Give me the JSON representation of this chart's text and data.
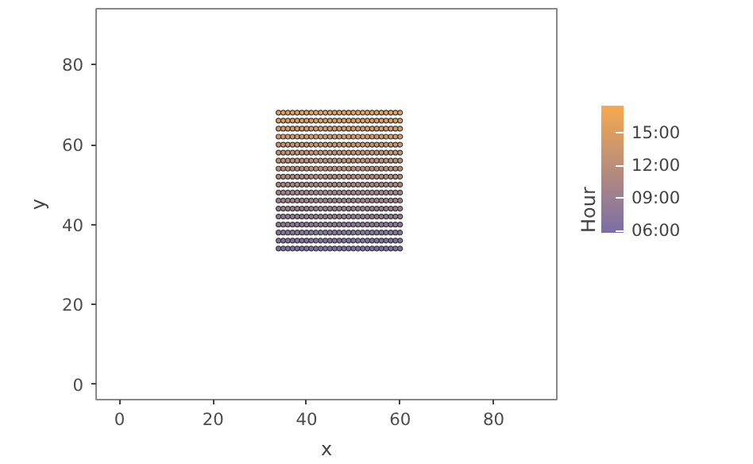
{
  "chart_data": {
    "type": "scatter",
    "xlabel": "x",
    "ylabel": "y",
    "clabel": "Hour",
    "xlim": [
      -5,
      93.5
    ],
    "ylim": [
      -3.8,
      94
    ],
    "xticks": [
      0,
      20,
      40,
      60,
      80
    ],
    "yticks": [
      0,
      20,
      40,
      60,
      80
    ],
    "grid": false,
    "marker": "circle",
    "clim": [
      5.8,
      17.5
    ],
    "cticks": [
      {
        "value": 6,
        "label": "06:00"
      },
      {
        "value": 9,
        "label": "09:00"
      },
      {
        "value": 12,
        "label": "12:00"
      },
      {
        "value": 15,
        "label": "15:00"
      }
    ],
    "x": [
      34,
      35,
      36,
      37,
      38,
      39,
      40,
      41,
      42,
      43,
      44,
      45,
      46,
      47,
      48,
      49,
      50,
      51,
      52,
      53,
      54,
      55,
      56,
      57,
      58,
      59,
      60
    ],
    "series": [
      {
        "values": [
          34,
          34,
          34,
          34,
          34,
          34,
          34,
          34,
          34,
          34,
          34,
          34,
          34,
          34,
          34,
          34,
          34,
          34,
          34,
          34,
          34,
          34,
          34,
          34,
          34,
          34,
          34
        ],
        "cvalues": [
          6,
          6,
          6,
          6,
          6,
          6,
          6,
          6,
          6,
          6,
          6,
          6,
          6,
          6,
          6,
          6,
          6,
          6,
          6,
          6,
          6,
          6,
          6,
          6,
          6,
          6,
          6
        ]
      },
      {
        "values": [
          36,
          36,
          36,
          36,
          36,
          36,
          36,
          36,
          36,
          36,
          36,
          36,
          36,
          36,
          36,
          36,
          36,
          36,
          36,
          36,
          36,
          36,
          36,
          36,
          36,
          36,
          36
        ],
        "cvalues": [
          6.6,
          6.6,
          6.6,
          6.6,
          6.6,
          6.6,
          6.6,
          6.6,
          6.6,
          6.6,
          6.6,
          6.6,
          6.6,
          6.6,
          6.6,
          6.6,
          6.6,
          6.6,
          6.6,
          6.6,
          6.6,
          6.6,
          6.6,
          6.6,
          6.6,
          6.6,
          6.6
        ]
      },
      {
        "values": [
          38,
          38,
          38,
          38,
          38,
          38,
          38,
          38,
          38,
          38,
          38,
          38,
          38,
          38,
          38,
          38,
          38,
          38,
          38,
          38,
          38,
          38,
          38,
          38,
          38,
          38,
          38
        ],
        "cvalues": [
          7.2,
          7.2,
          7.2,
          7.2,
          7.2,
          7.2,
          7.2,
          7.2,
          7.2,
          7.2,
          7.2,
          7.2,
          7.2,
          7.2,
          7.2,
          7.2,
          7.2,
          7.2,
          7.2,
          7.2,
          7.2,
          7.2,
          7.2,
          7.2,
          7.2,
          7.2,
          7.2
        ]
      },
      {
        "values": [
          40,
          40,
          40,
          40,
          40,
          40,
          40,
          40,
          40,
          40,
          40,
          40,
          40,
          40,
          40,
          40,
          40,
          40,
          40,
          40,
          40,
          40,
          40,
          40,
          40,
          40,
          40
        ],
        "cvalues": [
          7.8,
          7.8,
          7.8,
          7.8,
          7.8,
          7.8,
          7.8,
          7.8,
          7.8,
          7.8,
          7.8,
          7.8,
          7.8,
          7.8,
          7.8,
          7.8,
          7.8,
          7.8,
          7.8,
          7.8,
          7.8,
          7.8,
          7.8,
          7.8,
          7.8,
          7.8,
          7.8
        ]
      },
      {
        "values": [
          42,
          42,
          42,
          42,
          42,
          42,
          42,
          42,
          42,
          42,
          42,
          42,
          42,
          42,
          42,
          42,
          42,
          42,
          42,
          42,
          42,
          42,
          42,
          42,
          42,
          42,
          42
        ],
        "cvalues": [
          8.4,
          8.4,
          8.4,
          8.4,
          8.4,
          8.4,
          8.4,
          8.4,
          8.4,
          8.4,
          8.4,
          8.4,
          8.4,
          8.4,
          8.4,
          8.4,
          8.4,
          8.4,
          8.4,
          8.4,
          8.4,
          8.4,
          8.4,
          8.4,
          8.4,
          8.4,
          8.4
        ]
      },
      {
        "values": [
          44,
          44,
          44,
          44,
          44,
          44,
          44,
          44,
          44,
          44,
          44,
          44,
          44,
          44,
          44,
          44,
          44,
          44,
          44,
          44,
          44,
          44,
          44,
          44,
          44,
          44,
          44
        ],
        "cvalues": [
          9,
          9,
          9,
          9,
          9,
          9,
          9,
          9,
          9,
          9,
          9,
          9,
          9,
          9,
          9,
          9,
          9,
          9,
          9,
          9,
          9,
          9,
          9,
          9,
          9,
          9,
          9
        ]
      },
      {
        "values": [
          46,
          46,
          46,
          46,
          46,
          46,
          46,
          46,
          46,
          46,
          46,
          46,
          46,
          46,
          46,
          46,
          46,
          46,
          46,
          46,
          46,
          46,
          46,
          46,
          46,
          46,
          46
        ],
        "cvalues": [
          9.6,
          9.6,
          9.6,
          9.6,
          9.6,
          9.6,
          9.6,
          9.6,
          9.6,
          9.6,
          9.6,
          9.6,
          9.6,
          9.6,
          9.6,
          9.6,
          9.6,
          9.6,
          9.6,
          9.6,
          9.6,
          9.6,
          9.6,
          9.6,
          9.6,
          9.6,
          9.6
        ]
      },
      {
        "values": [
          48,
          48,
          48,
          48,
          48,
          48,
          48,
          48,
          48,
          48,
          48,
          48,
          48,
          48,
          48,
          48,
          48,
          48,
          48,
          48,
          48,
          48,
          48,
          48,
          48,
          48,
          48
        ],
        "cvalues": [
          10.2,
          10.2,
          10.2,
          10.2,
          10.2,
          10.2,
          10.2,
          10.2,
          10.2,
          10.2,
          10.2,
          10.2,
          10.2,
          10.2,
          10.2,
          10.2,
          10.2,
          10.2,
          10.2,
          10.2,
          10.2,
          10.2,
          10.2,
          10.2,
          10.2,
          10.2,
          10.2
        ]
      },
      {
        "values": [
          50,
          50,
          50,
          50,
          50,
          50,
          50,
          50,
          50,
          50,
          50,
          50,
          50,
          50,
          50,
          50,
          50,
          50,
          50,
          50,
          50,
          50,
          50,
          50,
          50,
          50,
          50
        ],
        "cvalues": [
          10.8,
          10.8,
          10.8,
          10.8,
          10.8,
          10.8,
          10.8,
          10.8,
          10.8,
          10.8,
          10.8,
          10.8,
          10.8,
          10.8,
          10.8,
          10.8,
          10.8,
          10.8,
          10.8,
          10.8,
          10.8,
          10.8,
          10.8,
          10.8,
          10.8,
          10.8,
          10.8
        ]
      },
      {
        "values": [
          52,
          52,
          52,
          52,
          52,
          52,
          52,
          52,
          52,
          52,
          52,
          52,
          52,
          52,
          52,
          52,
          52,
          52,
          52,
          52,
          52,
          52,
          52,
          52,
          52,
          52,
          52
        ],
        "cvalues": [
          11.4,
          11.4,
          11.4,
          11.4,
          11.4,
          11.4,
          11.4,
          11.4,
          11.4,
          11.4,
          11.4,
          11.4,
          11.4,
          11.4,
          11.4,
          11.4,
          11.4,
          11.4,
          11.4,
          11.4,
          11.4,
          11.4,
          11.4,
          11.4,
          11.4,
          11.4,
          11.4
        ]
      },
      {
        "values": [
          54,
          54,
          54,
          54,
          54,
          54,
          54,
          54,
          54,
          54,
          54,
          54,
          54,
          54,
          54,
          54,
          54,
          54,
          54,
          54,
          54,
          54,
          54,
          54,
          54,
          54,
          54
        ],
        "cvalues": [
          12,
          12,
          12,
          12,
          12,
          12,
          12,
          12,
          12,
          12,
          12,
          12,
          12,
          12,
          12,
          12,
          12,
          12,
          12,
          12,
          12,
          12,
          12,
          12,
          12,
          12,
          12
        ]
      },
      {
        "values": [
          56,
          56,
          56,
          56,
          56,
          56,
          56,
          56,
          56,
          56,
          56,
          56,
          56,
          56,
          56,
          56,
          56,
          56,
          56,
          56,
          56,
          56,
          56,
          56,
          56,
          56,
          56
        ],
        "cvalues": [
          12.6,
          12.6,
          12.6,
          12.6,
          12.6,
          12.6,
          12.6,
          12.6,
          12.6,
          12.6,
          12.6,
          12.6,
          12.6,
          12.6,
          12.6,
          12.6,
          12.6,
          12.6,
          12.6,
          12.6,
          12.6,
          12.6,
          12.6,
          12.6,
          12.6,
          12.6,
          12.6
        ]
      },
      {
        "values": [
          58,
          58,
          58,
          58,
          58,
          58,
          58,
          58,
          58,
          58,
          58,
          58,
          58,
          58,
          58,
          58,
          58,
          58,
          58,
          58,
          58,
          58,
          58,
          58,
          58,
          58,
          58
        ],
        "cvalues": [
          13.2,
          13.2,
          13.2,
          13.2,
          13.2,
          13.2,
          13.2,
          13.2,
          13.2,
          13.2,
          13.2,
          13.2,
          13.2,
          13.2,
          13.2,
          13.2,
          13.2,
          13.2,
          13.2,
          13.2,
          13.2,
          13.2,
          13.2,
          13.2,
          13.2,
          13.2,
          13.2
        ]
      },
      {
        "values": [
          60,
          60,
          60,
          60,
          60,
          60,
          60,
          60,
          60,
          60,
          60,
          60,
          60,
          60,
          60,
          60,
          60,
          60,
          60,
          60,
          60,
          60,
          60,
          60,
          60,
          60,
          60
        ],
        "cvalues": [
          13.8,
          13.8,
          13.8,
          13.8,
          13.8,
          13.8,
          13.8,
          13.8,
          13.8,
          13.8,
          13.8,
          13.8,
          13.8,
          13.8,
          13.8,
          13.8,
          13.8,
          13.8,
          13.8,
          13.8,
          13.8,
          13.8,
          13.8,
          13.8,
          13.8,
          13.8,
          13.8
        ]
      },
      {
        "values": [
          62,
          62,
          62,
          62,
          62,
          62,
          62,
          62,
          62,
          62,
          62,
          62,
          62,
          62,
          62,
          62,
          62,
          62,
          62,
          62,
          62,
          62,
          62,
          62,
          62,
          62,
          62
        ],
        "cvalues": [
          14.4,
          14.4,
          14.4,
          14.4,
          14.4,
          14.4,
          14.4,
          14.4,
          14.4,
          14.4,
          14.4,
          14.4,
          14.4,
          14.4,
          14.4,
          14.4,
          14.4,
          14.4,
          14.4,
          14.4,
          14.4,
          14.4,
          14.4,
          14.4,
          14.4,
          14.4,
          14.4
        ]
      },
      {
        "values": [
          64,
          64,
          64,
          64,
          64,
          64,
          64,
          64,
          64,
          64,
          64,
          64,
          64,
          64,
          64,
          64,
          64,
          64,
          64,
          64,
          64,
          64,
          64,
          64,
          64,
          64,
          64
        ],
        "cvalues": [
          15,
          15,
          15,
          15,
          15,
          15,
          15,
          15,
          15,
          15,
          15,
          15,
          15,
          15,
          15,
          15,
          15,
          15,
          15,
          15,
          15,
          15,
          15,
          15,
          15,
          15,
          15
        ]
      },
      {
        "values": [
          66,
          66,
          66,
          66,
          66,
          66,
          66,
          66,
          66,
          66,
          66,
          66,
          66,
          66,
          66,
          66,
          66,
          66,
          66,
          66,
          66,
          66,
          66,
          66,
          66,
          66,
          66
        ],
        "cvalues": [
          15.6,
          15.6,
          15.6,
          15.6,
          15.6,
          15.6,
          15.6,
          15.6,
          15.6,
          15.6,
          15.6,
          15.6,
          15.6,
          15.6,
          15.6,
          15.6,
          15.6,
          15.6,
          15.6,
          15.6,
          15.6,
          15.6,
          15.6,
          15.6,
          15.6,
          15.6,
          15.6
        ]
      },
      {
        "values": [
          68,
          68,
          68,
          68,
          68,
          68,
          68,
          68,
          68,
          68,
          68,
          68,
          68,
          68,
          68,
          68,
          68,
          68,
          68,
          68,
          68,
          68,
          68,
          68,
          68,
          68,
          68
        ],
        "cvalues": [
          16.2,
          16.2,
          16.2,
          16.2,
          16.2,
          16.2,
          16.2,
          16.2,
          16.2,
          16.2,
          16.2,
          16.2,
          16.2,
          16.2,
          16.2,
          16.2,
          16.2,
          16.2,
          16.2,
          16.2,
          16.2,
          16.2,
          16.2,
          16.2,
          16.2,
          16.2,
          16.2
        ]
      }
    ]
  }
}
